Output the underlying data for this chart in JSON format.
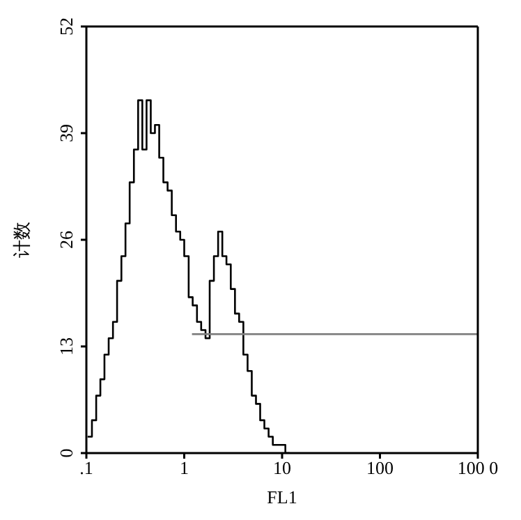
{
  "chart_data": {
    "type": "step",
    "xlabel": "FL1",
    "ylabel": "计数",
    "log": "x",
    "xlim": [
      0.1,
      1000
    ],
    "xticks": [
      {
        "value": 0.1,
        "label": ".1"
      },
      1,
      10,
      100,
      {
        "value": 1000,
        "label": "100 0"
      }
    ],
    "ylim": [
      0,
      52
    ],
    "yticks": [
      0,
      13,
      26,
      39,
      52
    ],
    "grid": false,
    "marker": "none",
    "series": [
      {
        "color": "#000000",
        "x": [
          0.103,
          0.114,
          0.126,
          0.139,
          0.153,
          0.169,
          0.187,
          0.206,
          0.228,
          0.251,
          0.277,
          0.306,
          0.338,
          0.373,
          0.412,
          0.455,
          0.502,
          0.555,
          0.612,
          0.676,
          0.746,
          0.824,
          0.91,
          1.0,
          1.11,
          1.22,
          1.35,
          1.49,
          1.65,
          1.82,
          2.01,
          2.22,
          2.45,
          2.7,
          2.99,
          3.3,
          3.64,
          4.02,
          4.44,
          4.9,
          5.41,
          5.97,
          6.59,
          7.28,
          8.04,
          8.87,
          9.79,
          10.8,
          11.9
        ],
        "values": [
          2,
          4,
          7,
          9,
          12,
          14,
          16,
          21,
          24,
          28,
          33,
          37,
          43,
          37,
          43,
          39,
          40,
          36,
          33,
          32,
          29,
          27,
          26,
          24,
          19,
          18,
          16,
          15,
          14,
          21,
          24,
          27,
          24,
          23,
          20,
          17,
          16,
          12,
          10,
          7,
          6,
          4,
          3,
          2,
          1,
          1,
          1,
          0,
          0
        ]
      },
      {
        "type": "line",
        "color": "#808080",
        "x": [
          1.2,
          1000
        ],
        "values": [
          14.5,
          14.5
        ]
      }
    ]
  }
}
